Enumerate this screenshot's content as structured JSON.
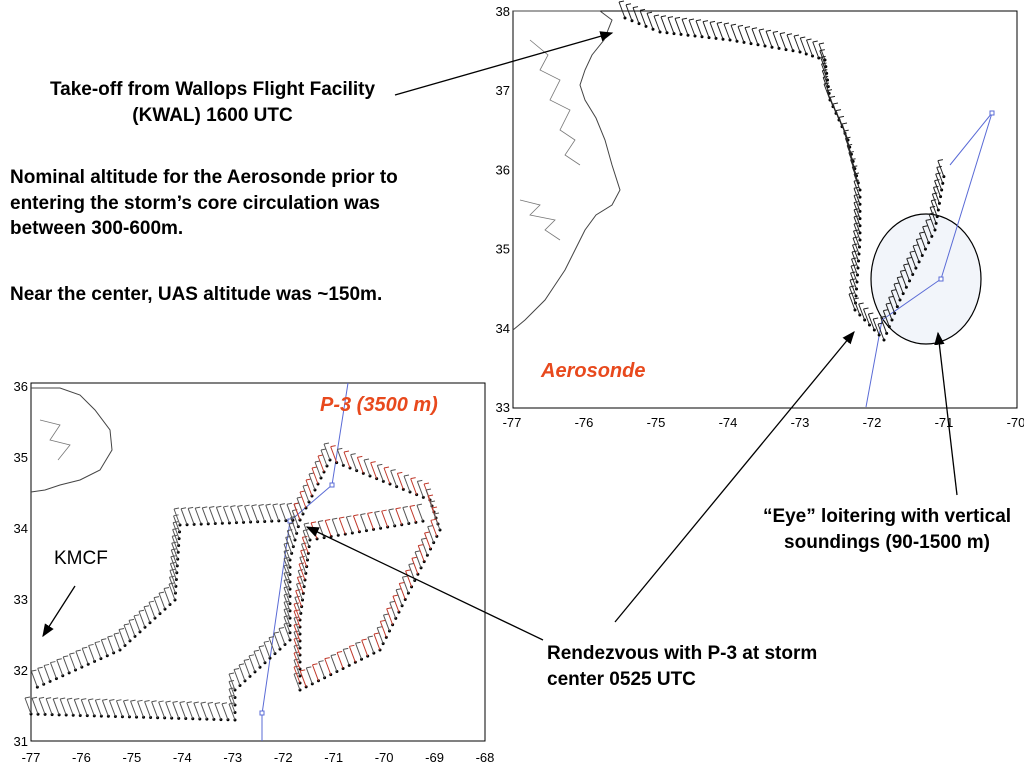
{
  "annotations": {
    "takeoff": "Take-off from Wallops Flight Facility (KWAL) 1600 UTC",
    "nominal": "Nominal altitude for the Aerosonde prior to entering the storm’s core circulation was between 300-600m.",
    "near_center": "Near the center, UAS altitude was ~150m.",
    "eye": "“Eye” loitering with vertical soundings (90-1500 m)",
    "rendezvous": "Rendezvous with P-3 at storm center 0525 UTC",
    "kmcf": "KMCF"
  },
  "panels": {
    "aerosonde": {
      "label": "Aerosonde",
      "x_ticks": [
        "-77",
        "-76",
        "-75",
        "-74",
        "-73",
        "-72",
        "-71",
        "-70"
      ],
      "y_ticks": [
        "38",
        "37",
        "36",
        "35",
        "34",
        "33"
      ]
    },
    "p3": {
      "label": "P-3 (3500 m)",
      "x_ticks": [
        "-77",
        "-76",
        "-75",
        "-74",
        "-73",
        "-72",
        "-71",
        "-70",
        "-69",
        "-68"
      ],
      "y_ticks": [
        "36",
        "35",
        "34",
        "33",
        "32",
        "31"
      ]
    }
  },
  "colors": {
    "label_red": "#e8491d",
    "track_blue": "#5a6bd6",
    "barb_red": "#c0392b"
  }
}
